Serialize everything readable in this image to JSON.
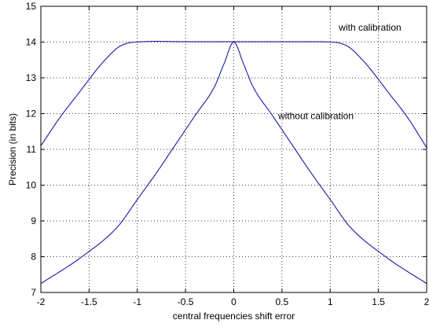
{
  "chart_data": {
    "type": "line",
    "title": "",
    "xlabel": "central frequencies shift error",
    "ylabel": "Precision (in bits)",
    "xlim": [
      -2,
      2
    ],
    "ylim": [
      7,
      15
    ],
    "xticks": [
      -2,
      -1.5,
      -1,
      -0.5,
      0,
      0.5,
      1,
      1.5,
      2
    ],
    "yticks": [
      7,
      8,
      9,
      10,
      11,
      12,
      13,
      14,
      15
    ],
    "xtick_labels": [
      "-2",
      "-1.5",
      "-1",
      "-0.5",
      "0",
      "0.5",
      "1",
      "1.5",
      "2"
    ],
    "ytick_labels": [
      "7",
      "8",
      "9",
      "10",
      "11",
      "12",
      "13",
      "14",
      "15"
    ],
    "grid": true,
    "line_color": "#1a1aa6",
    "series": [
      {
        "id": "with",
        "x": [
          -2,
          -1.8,
          -1.6,
          -1.4,
          -1.3,
          -1.2,
          -1.1,
          -1.0,
          -0.8,
          -0.5,
          0,
          0.5,
          0.8,
          1.0,
          1.1,
          1.2,
          1.3,
          1.4,
          1.6,
          1.8,
          2
        ],
        "y": [
          11.1,
          11.9,
          12.6,
          13.3,
          13.6,
          13.85,
          13.97,
          14.0,
          14.02,
          14.01,
          14.01,
          14.01,
          14.01,
          14.0,
          13.97,
          13.85,
          13.6,
          13.3,
          12.6,
          11.9,
          11.05
        ]
      },
      {
        "id": "without",
        "x": [
          -2,
          -1.6,
          -1.2,
          -1.0,
          -0.8,
          -0.6,
          -0.4,
          -0.2,
          -0.1,
          0,
          0.1,
          0.2,
          0.4,
          0.6,
          0.8,
          1.0,
          1.2,
          1.6,
          2
        ],
        "y": [
          7.25,
          7.95,
          8.85,
          9.6,
          10.35,
          11.15,
          11.95,
          12.75,
          13.4,
          14.0,
          13.4,
          12.75,
          11.95,
          11.15,
          10.35,
          9.6,
          8.85,
          7.95,
          7.25
        ]
      }
    ],
    "annotations": [
      {
        "text": "with calibration",
        "x": 1.09,
        "y": 14.32
      },
      {
        "text": "without calibration",
        "x": 0.46,
        "y": 11.85
      }
    ]
  }
}
